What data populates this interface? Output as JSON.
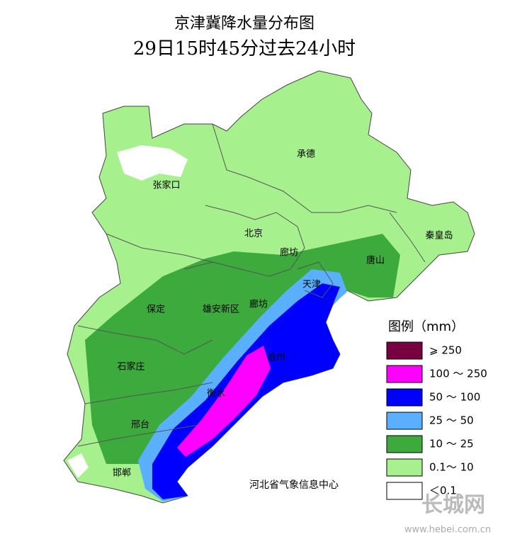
{
  "title": "京津冀降水量分布图",
  "subtitle": "29日15时45分过去24小时",
  "cities": [
    {
      "name": "张家口"
    },
    {
      "name": "承德"
    },
    {
      "name": "北京"
    },
    {
      "name": "廊坊"
    },
    {
      "name": "秦皇岛"
    },
    {
      "name": "唐山"
    },
    {
      "name": "天津"
    },
    {
      "name": "保定"
    },
    {
      "name": "雄安新区"
    },
    {
      "name": "廊坊"
    },
    {
      "name": "石家庄"
    },
    {
      "name": "沧州"
    },
    {
      "name": "衡水"
    },
    {
      "name": "邢台"
    },
    {
      "name": "邯郸"
    }
  ],
  "legend": {
    "title": "图例（mm）",
    "items": [
      {
        "label": "⩾ 250",
        "color": "#780040"
      },
      {
        "label": "100 ～ 250",
        "color": "#ff00ff"
      },
      {
        "label": "50 ～ 100",
        "color": "#0000ff"
      },
      {
        "label": "25 ～ 50",
        "color": "#5ab0ff"
      },
      {
        "label": "10 ～ 25",
        "color": "#3caa3c"
      },
      {
        "label": "0.1～ 10",
        "color": "#a6f08e"
      },
      {
        "label": "＜0.1",
        "color": "#ffffff"
      }
    ]
  },
  "source": "河北省气象信息中心",
  "watermark": {
    "name": "长城网",
    "url": "www.hebei.com.cn"
  }
}
